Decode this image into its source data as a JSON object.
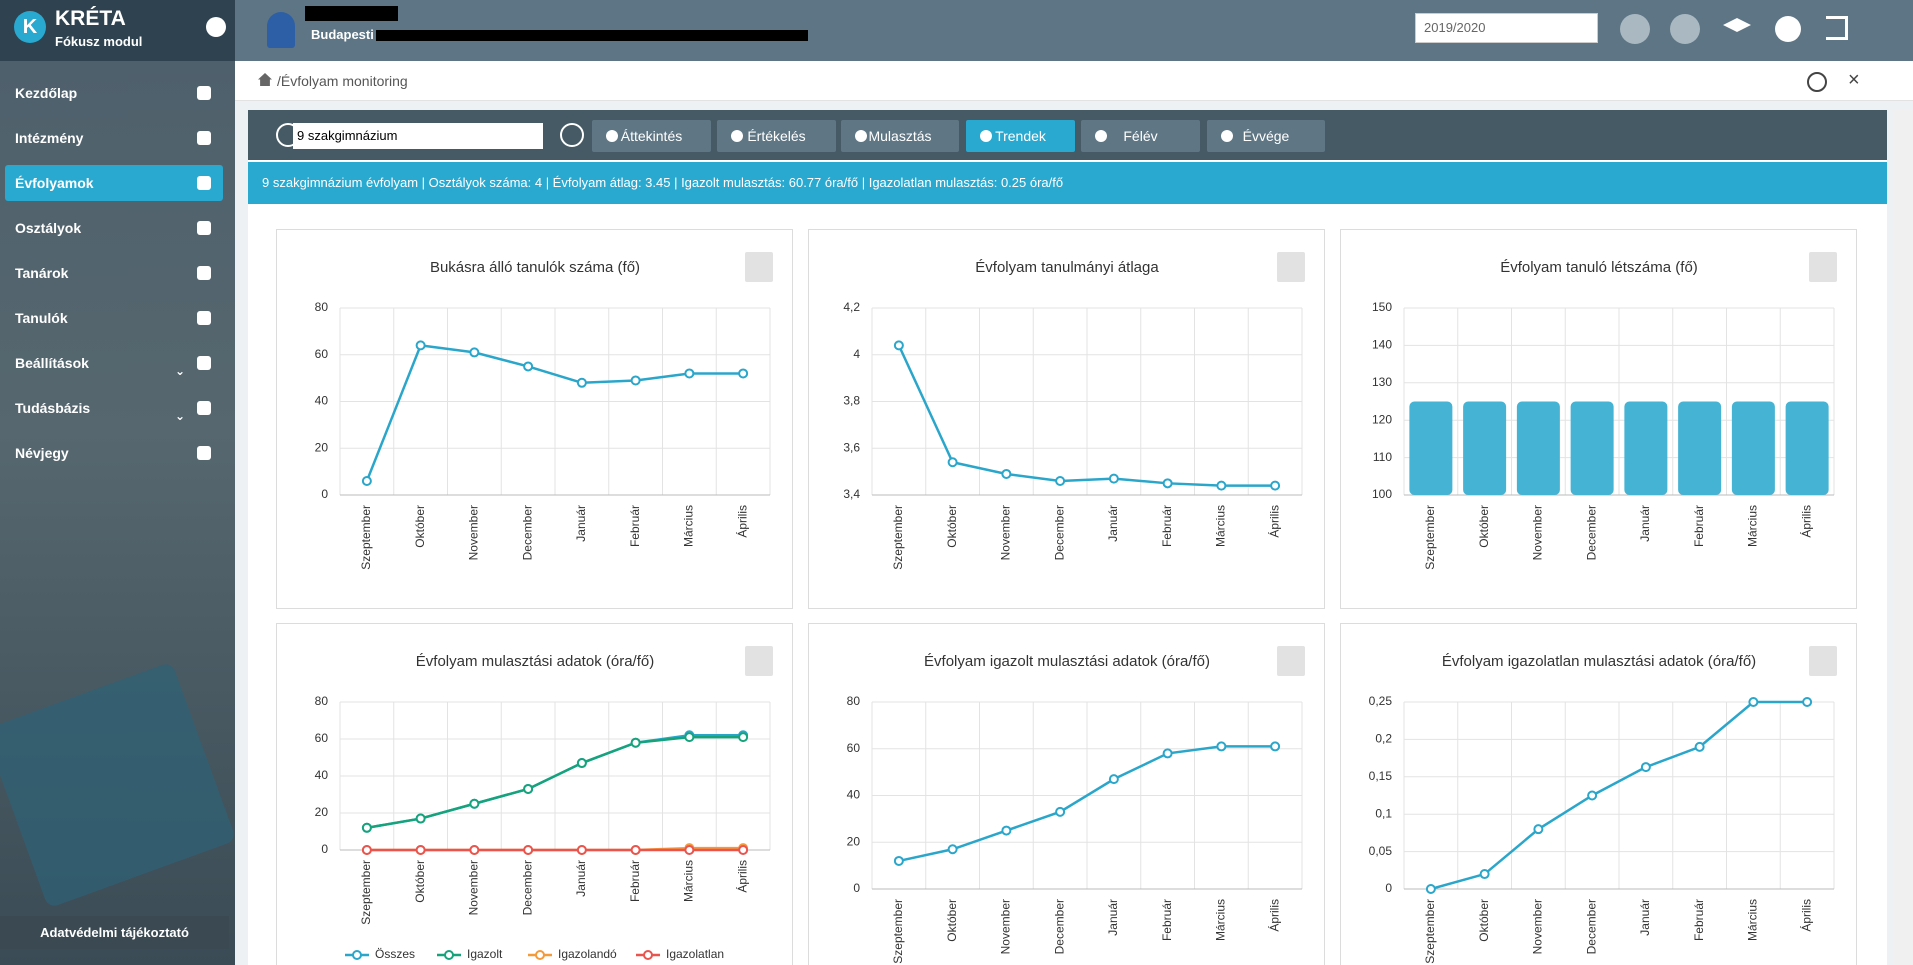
{
  "sidebar": {
    "logo_mark": "K",
    "logo": "KRÉTA",
    "subtitle": "Fókusz modul",
    "items": [
      "Kezdőlap",
      "Intézmény",
      "Évfolyamok",
      "Osztályok",
      "Tanárok",
      "Tanulók",
      "Beállítások",
      "Tudásbázis",
      "Névjegy"
    ],
    "footer": "Adatvédelmi tájékoztató"
  },
  "header": {
    "school": "Budapesti",
    "year": "2019/2020"
  },
  "breadcrumb": "/Évfolyam monitoring",
  "toolbar": {
    "select": "9 szakgimnázium",
    "tabs": [
      "Áttekintés",
      "Értékelés",
      "Mulasztás",
      "Trendek",
      "Félév",
      "Évvége"
    ]
  },
  "info_bar": "9 szakgimnázium évfolyam | Osztályok száma: 4 | Évfolyam átlag: 3.45 | Igazolt mulasztás: 60.77 óra/fő | Igazolatlan mulasztás: 0.25 óra/fő",
  "chart_data": [
    {
      "type": "line",
      "title": "Bukásra álló tanulók száma (fő)",
      "color": "#2ba6cb",
      "categories": [
        "Szeptember",
        "Október",
        "November",
        "December",
        "Január",
        "Február",
        "Március",
        "Április"
      ],
      "values": [
        6,
        64,
        61,
        55,
        48,
        49,
        52,
        52
      ],
      "ylim": [
        0,
        80
      ],
      "yticks": [
        0,
        20,
        40,
        60,
        80
      ],
      "grid": true
    },
    {
      "type": "line",
      "title": "Évfolyam tanulmányi átlaga",
      "color": "#2ba6cb",
      "categories": [
        "Szeptember",
        "Október",
        "November",
        "December",
        "Január",
        "Február",
        "Március",
        "Április"
      ],
      "values": [
        4.04,
        3.54,
        3.49,
        3.46,
        3.47,
        3.45,
        3.44,
        3.44
      ],
      "ylim": [
        3.4,
        4.2
      ],
      "yticks": [
        {
          "value": 3.4,
          "label": "3,4"
        },
        {
          "value": 3.6,
          "label": "3,6"
        },
        {
          "value": 3.8,
          "label": "3,8"
        },
        4,
        {
          "value": 4.2,
          "label": "4,2"
        }
      ],
      "grid": true
    },
    {
      "type": "bar",
      "title": "Évfolyam tanuló létszáma (fő)",
      "color": "#45b3d3",
      "categories": [
        "Szeptember",
        "Október",
        "November",
        "December",
        "Január",
        "Február",
        "Március",
        "Április"
      ],
      "values": [
        125,
        125,
        125,
        125,
        125,
        125,
        125,
        125
      ],
      "ylim": [
        100,
        150
      ],
      "yticks": [
        100,
        110,
        120,
        130,
        140,
        150
      ],
      "grid": true
    },
    {
      "type": "line",
      "title": "Évfolyam mulasztási adatok (óra/fő)",
      "legend": "bottom",
      "categories": [
        "Szeptember",
        "Október",
        "November",
        "December",
        "Január",
        "Február",
        "Március",
        "Április"
      ],
      "series": [
        {
          "name": "Összes",
          "color": "#2ba6cb",
          "values": [
            12,
            17,
            25,
            33,
            47,
            58,
            62,
            62
          ]
        },
        {
          "name": "Igazolt",
          "color": "#16a37c",
          "values": [
            12,
            17,
            25,
            33,
            47,
            58,
            61,
            61
          ]
        },
        {
          "name": "Igazolandó",
          "color": "#f59a3a",
          "values": [
            0,
            0,
            0,
            0,
            0,
            0,
            1,
            1
          ]
        },
        {
          "name": "Igazolatlan",
          "color": "#e9544f",
          "values": [
            0,
            0,
            0,
            0,
            0,
            0,
            0,
            0
          ]
        }
      ],
      "ylim": [
        0,
        80
      ],
      "yticks": [
        0,
        20,
        40,
        60,
        80
      ],
      "grid": true
    },
    {
      "type": "line",
      "title": "Évfolyam igazolt mulasztási adatok (óra/fő)",
      "color": "#2ba6cb",
      "categories": [
        "Szeptember",
        "Október",
        "November",
        "December",
        "Január",
        "Február",
        "Március",
        "Április"
      ],
      "values": [
        12,
        17,
        25,
        33,
        47,
        58,
        61,
        61
      ],
      "ylim": [
        0,
        80
      ],
      "yticks": [
        0,
        20,
        40,
        60,
        80
      ],
      "grid": true
    },
    {
      "type": "line",
      "title": "Évfolyam igazolatlan mulasztási adatok (óra/fő)",
      "color": "#2ba6cb",
      "categories": [
        "Szeptember",
        "Október",
        "November",
        "December",
        "Január",
        "Február",
        "Március",
        "Április"
      ],
      "values": [
        0,
        0.02,
        0.08,
        0.125,
        0.163,
        0.19,
        0.25,
        0.25
      ],
      "ylim": [
        0,
        0.25
      ],
      "yticks": [
        0,
        {
          "value": 0.05,
          "label": "0,05"
        },
        {
          "value": 0.1,
          "label": "0,1"
        },
        {
          "value": 0.15,
          "label": "0,15"
        },
        {
          "value": 0.2,
          "label": "0,2"
        },
        {
          "value": 0.25,
          "label": "0,25"
        }
      ],
      "grid": true
    }
  ]
}
